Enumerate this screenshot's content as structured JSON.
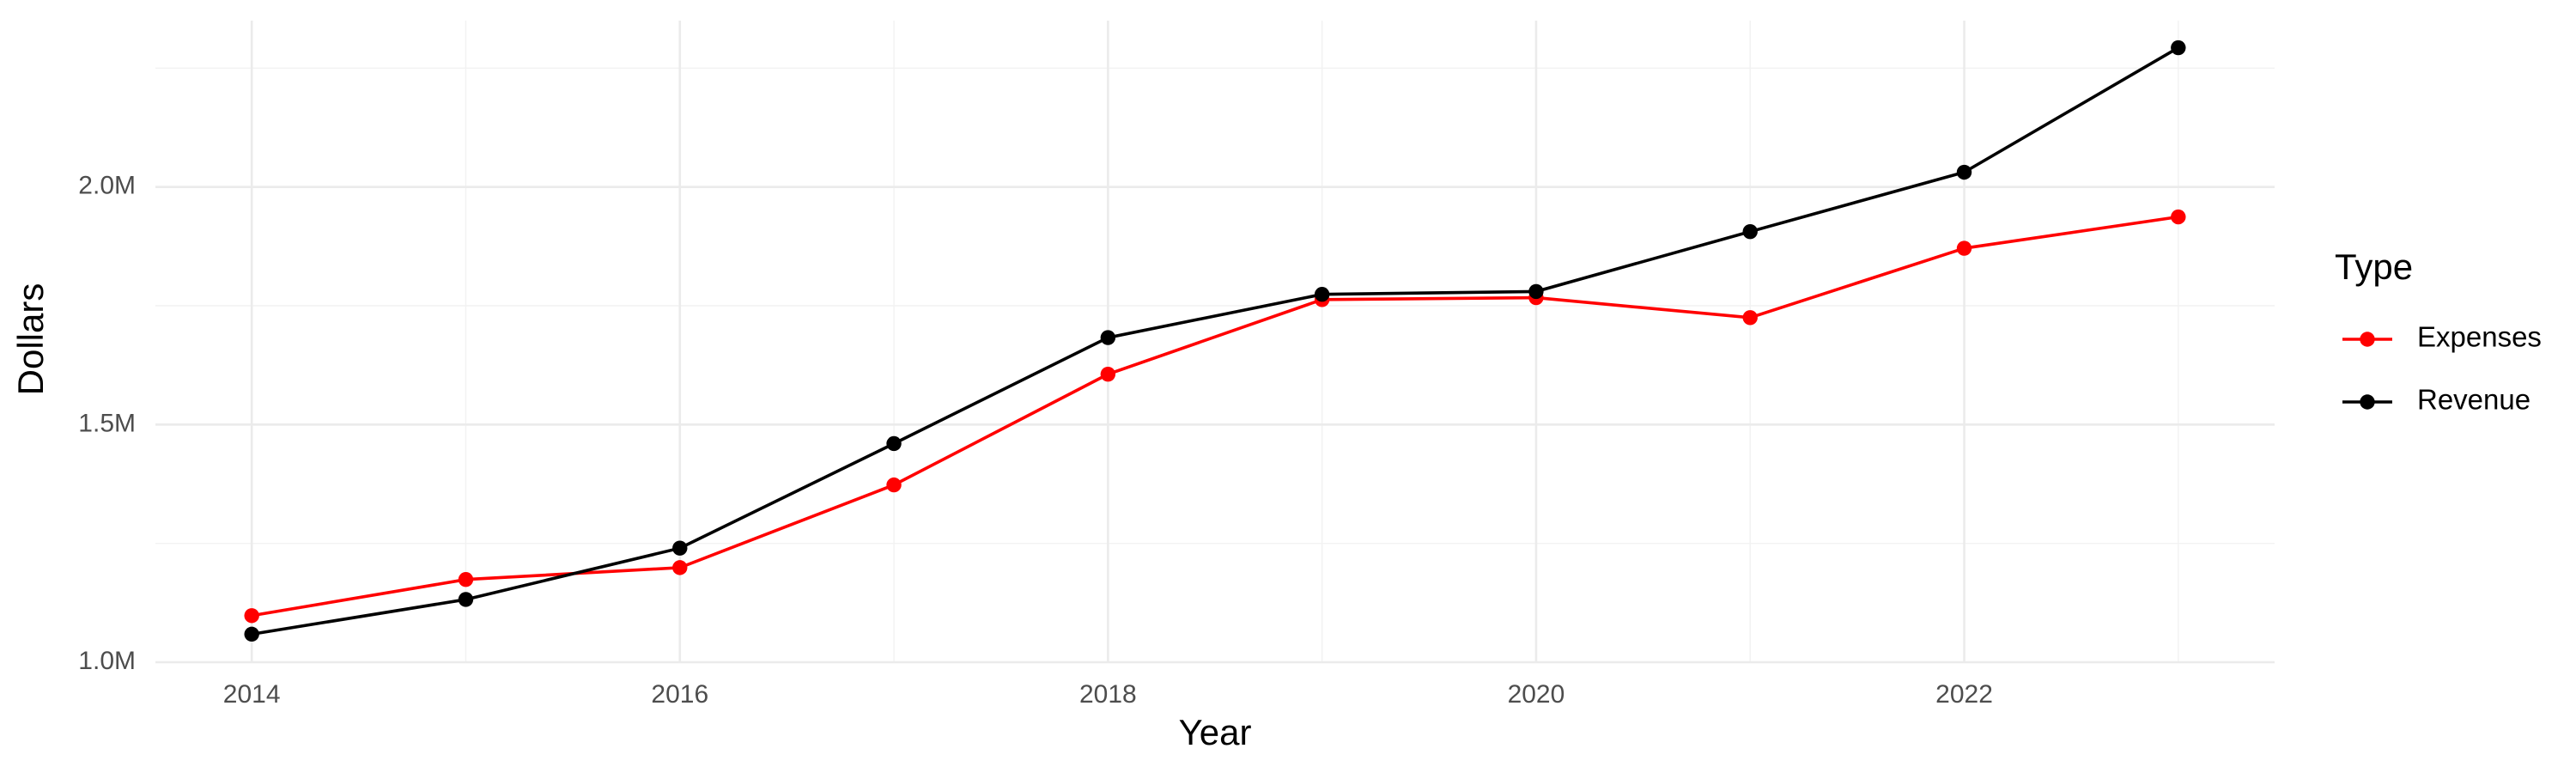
{
  "chart_data": {
    "type": "line",
    "x_label": "Year",
    "y_label": "Dollars",
    "legend_title": "Type",
    "legend": "right",
    "grid": true,
    "x": [
      2014,
      2015,
      2016,
      2017,
      2018,
      2019,
      2020,
      2021,
      2022,
      2023
    ],
    "series": [
      {
        "name": "Expenses",
        "color": "#ff0000",
        "values": [
          1098000,
          1174000,
          1199000,
          1373000,
          1606000,
          1763000,
          1767000,
          1725000,
          1871000,
          1937000
        ]
      },
      {
        "name": "Revenue",
        "color": "#000000",
        "values": [
          1059000,
          1132000,
          1240000,
          1460000,
          1683000,
          1774000,
          1780000,
          1906000,
          2031000,
          2293000
        ]
      }
    ],
    "xlim": [
      2013.55,
      2023.45
    ],
    "xticks": [
      2014,
      2016,
      2018,
      2020,
      2022
    ],
    "ylim": [
      1000000,
      2350000
    ],
    "yticks": [
      {
        "value": 1000000,
        "label": "1.0M"
      },
      {
        "value": 1500000,
        "label": "1.5M"
      },
      {
        "value": 2000000,
        "label": "2.0M"
      }
    ]
  }
}
